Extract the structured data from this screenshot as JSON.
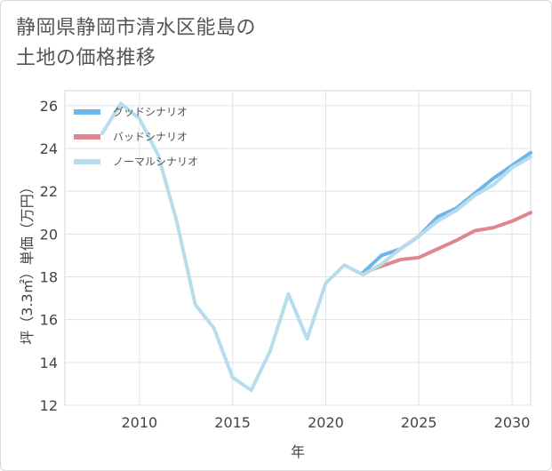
{
  "title_lines": [
    "静岡県静岡市清水区能島の",
    "土地の価格推移"
  ],
  "chart_data": {
    "type": "line",
    "title": "静岡県静岡市清水区能島の土地の価格推移",
    "xlabel": "年",
    "ylabel": "坪（3.3㎡）単価（万円）",
    "xlim": [
      2006,
      2031
    ],
    "ylim": [
      12,
      26.7
    ],
    "xticks": [
      2010,
      2015,
      2020,
      2025,
      2030
    ],
    "yticks": [
      12,
      14,
      16,
      18,
      20,
      22,
      24,
      26
    ],
    "grid": true,
    "legend_position": "top-left",
    "series": [
      {
        "name": "グッドシナリオ",
        "color": "#6cb6ea",
        "x": [
          2022,
          2023,
          2024,
          2025,
          2026,
          2027,
          2028,
          2029,
          2030,
          2031
        ],
        "y": [
          18.2,
          19.0,
          19.3,
          19.9,
          20.8,
          21.2,
          21.9,
          22.6,
          23.2,
          23.8
        ]
      },
      {
        "name": "バッドシナリオ",
        "color": "#e0868f",
        "x": [
          2022,
          2023,
          2024,
          2025,
          2026,
          2027,
          2028,
          2029,
          2030,
          2031
        ],
        "y": [
          18.2,
          18.5,
          18.8,
          18.9,
          19.3,
          19.7,
          20.15,
          20.3,
          20.6,
          21.0
        ]
      },
      {
        "name": "ノーマルシナリオ",
        "color": "#b7dcec",
        "x": [
          2008,
          2009,
          2010,
          2011,
          2012,
          2013,
          2014,
          2015,
          2016,
          2017,
          2018,
          2019,
          2020,
          2021,
          2022,
          2023,
          2024,
          2025,
          2026,
          2027,
          2028,
          2029,
          2030,
          2031
        ],
        "y": [
          24.7,
          26.1,
          25.4,
          23.7,
          20.6,
          16.7,
          15.6,
          13.3,
          12.7,
          14.5,
          17.2,
          15.1,
          17.7,
          18.55,
          18.1,
          18.6,
          19.3,
          19.9,
          20.6,
          21.1,
          21.8,
          22.3,
          23.1,
          23.6
        ]
      }
    ]
  }
}
